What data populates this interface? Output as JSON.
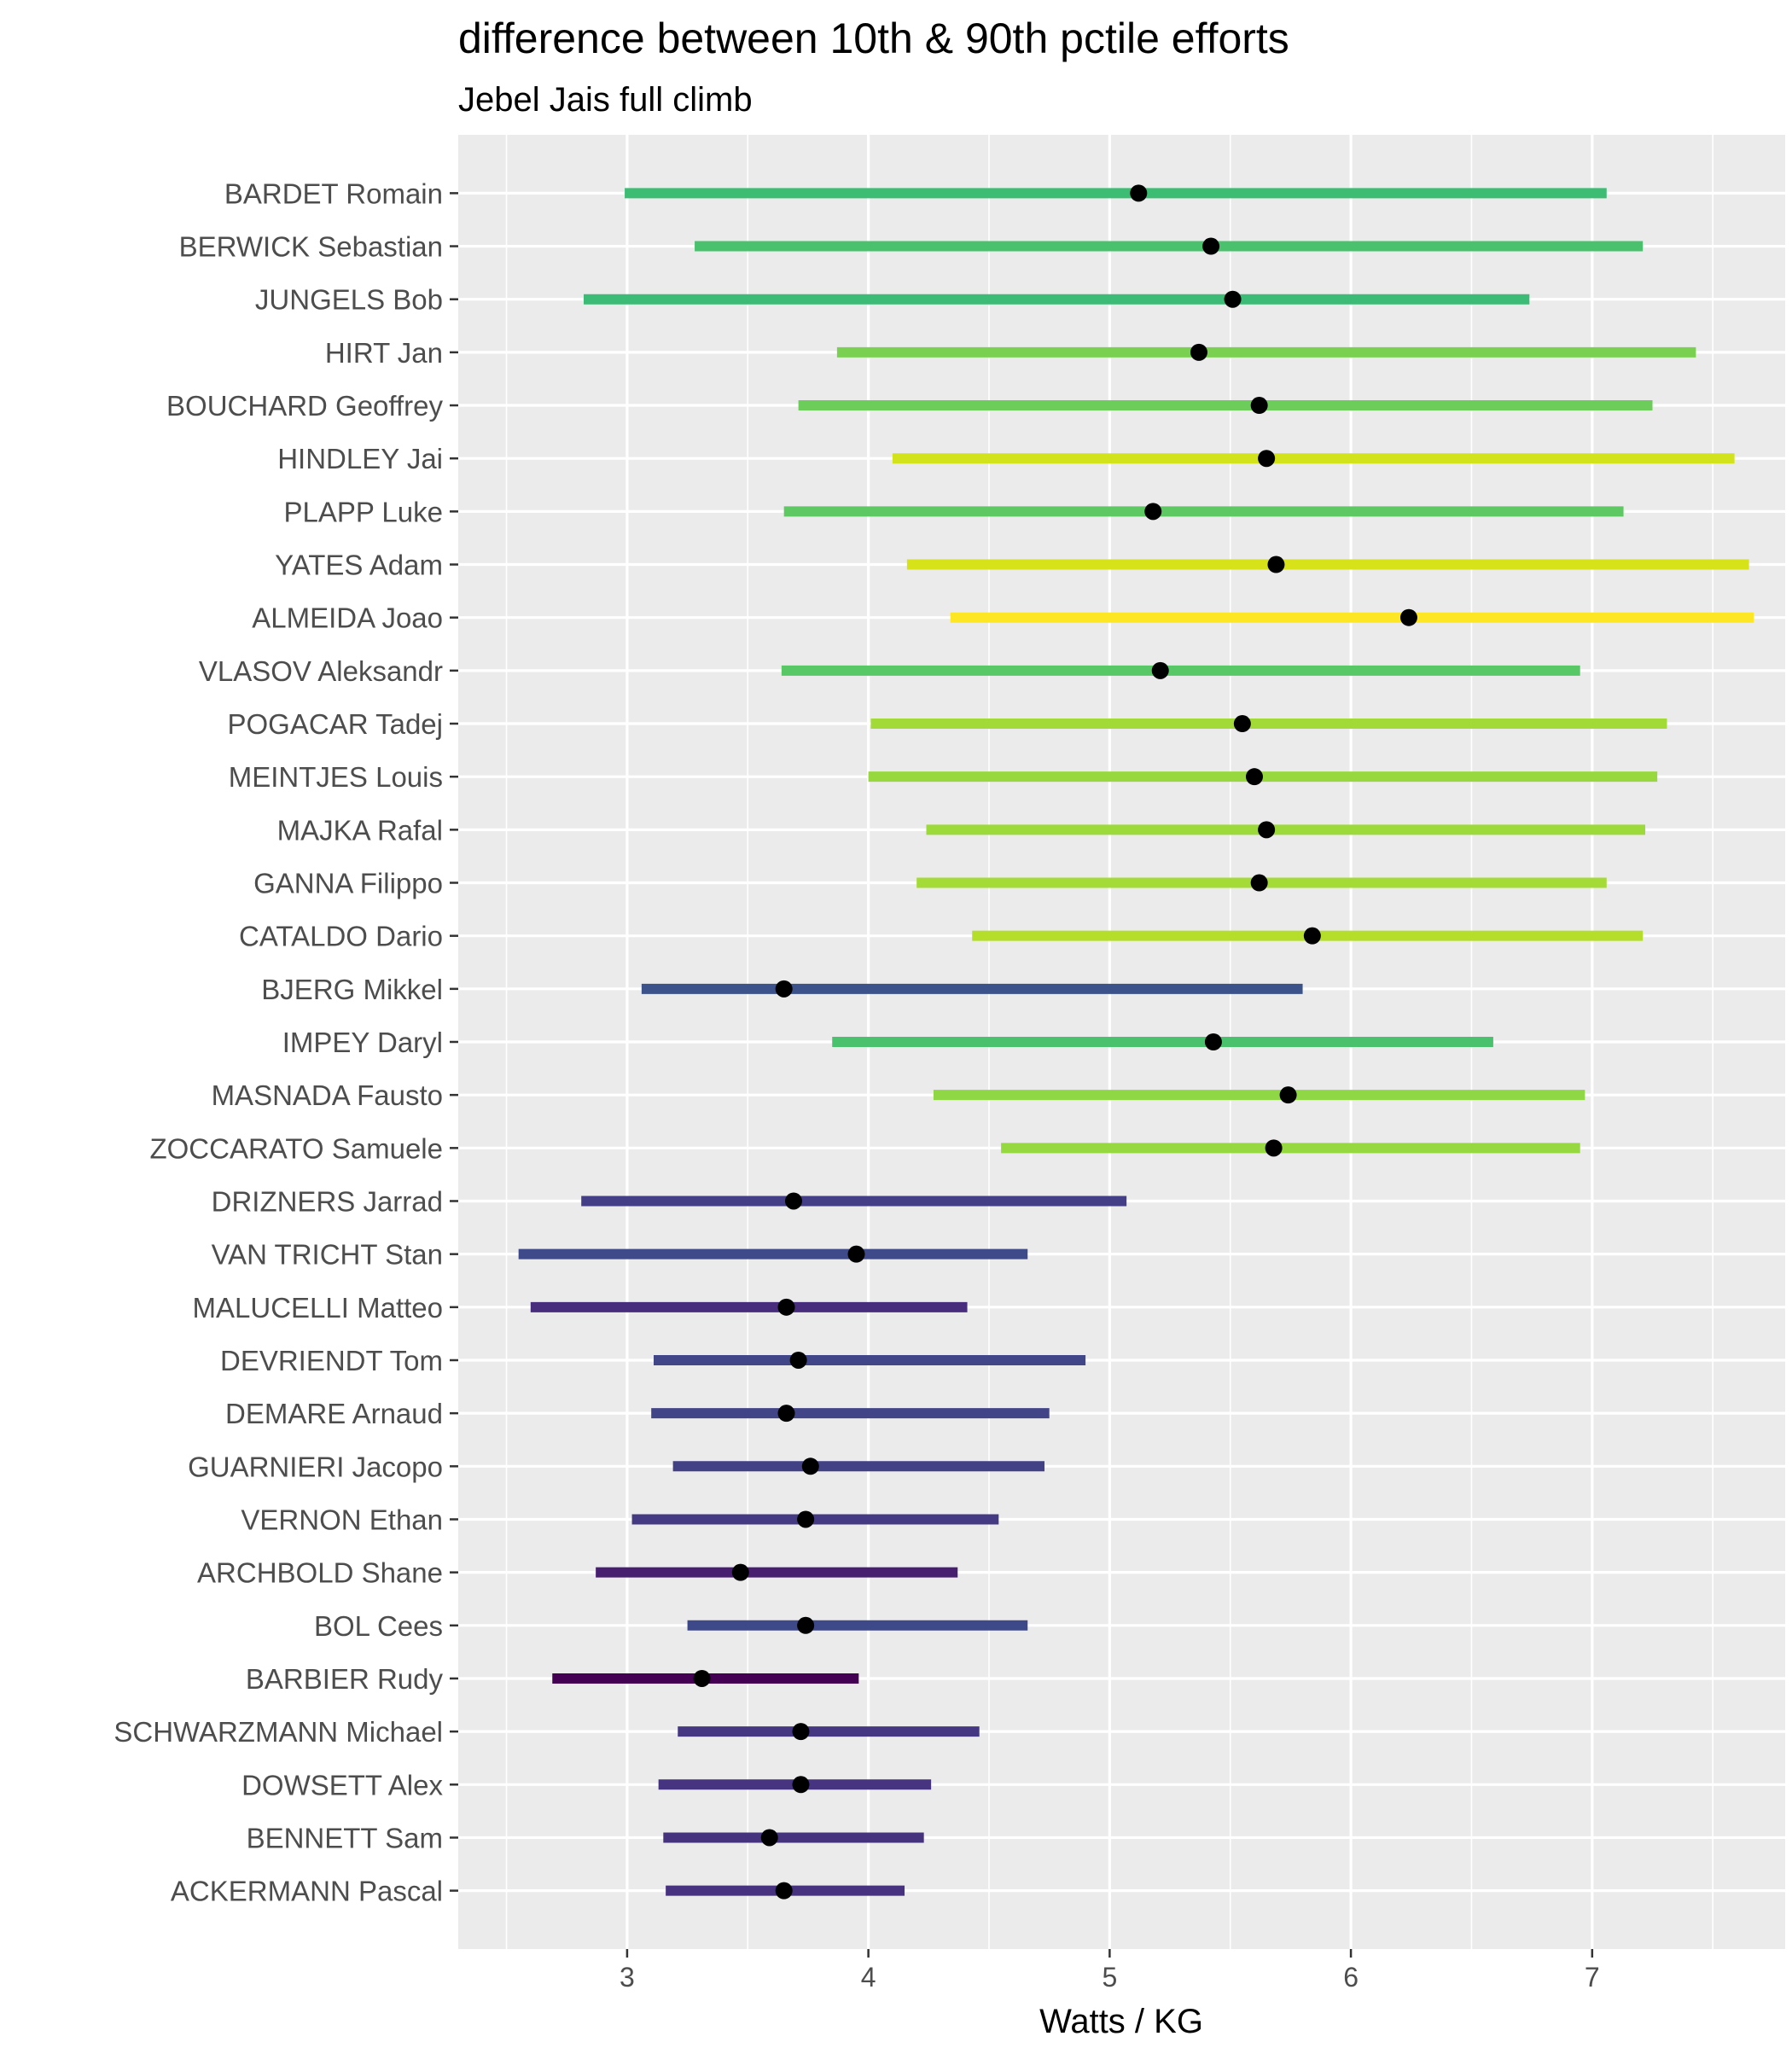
{
  "chart_data": {
    "type": "dumbbell",
    "title": "difference between 10th & 90th pctile efforts",
    "subtitle": "Jebel Jais full climb",
    "xlabel": "Watts / KG",
    "ylabel": "",
    "xlim": [
      2.3,
      7.8
    ],
    "xticks": [
      3,
      4,
      5,
      6,
      7
    ],
    "grid": true,
    "panel_background": "#ebebeb",
    "grid_color": "#ffffff",
    "point_color": "#000000",
    "color_scale": "viridis",
    "riders": [
      {
        "name": "BARDET Romain",
        "p10": 2.99,
        "p90": 7.06,
        "median": 5.12,
        "color": "#3dbc74"
      },
      {
        "name": "BERWICK Sebastian",
        "p10": 3.28,
        "p90": 7.21,
        "median": 5.42,
        "color": "#4ac16d"
      },
      {
        "name": "JUNGELS Bob",
        "p10": 2.82,
        "p90": 6.74,
        "median": 5.51,
        "color": "#3bbb75"
      },
      {
        "name": "HIRT Jan",
        "p10": 3.87,
        "p90": 7.43,
        "median": 5.37,
        "color": "#7ad151"
      },
      {
        "name": "BOUCHARD Geoffrey",
        "p10": 3.71,
        "p90": 7.25,
        "median": 5.62,
        "color": "#6ccd5a"
      },
      {
        "name": "HINDLEY Jai",
        "p10": 4.1,
        "p90": 7.59,
        "median": 5.65,
        "color": "#d2e21b"
      },
      {
        "name": "PLAPP Luke",
        "p10": 3.65,
        "p90": 7.13,
        "median": 5.18,
        "color": "#5ec962"
      },
      {
        "name": "YATES Adam",
        "p10": 4.16,
        "p90": 7.65,
        "median": 5.69,
        "color": "#d8e219"
      },
      {
        "name": "ALMEIDA Joao",
        "p10": 4.34,
        "p90": 7.67,
        "median": 6.24,
        "color": "#fde725"
      },
      {
        "name": "VLASOV Aleksandr",
        "p10": 3.64,
        "p90": 6.95,
        "median": 5.21,
        "color": "#58c765"
      },
      {
        "name": "POGACAR Tadej",
        "p10": 4.01,
        "p90": 7.31,
        "median": 5.55,
        "color": "#a2da37"
      },
      {
        "name": "MEINTJES Louis",
        "p10": 4.0,
        "p90": 7.27,
        "median": 5.6,
        "color": "#97d83f"
      },
      {
        "name": "MAJKA Rafal",
        "p10": 4.24,
        "p90": 7.22,
        "median": 5.65,
        "color": "#9cd93b"
      },
      {
        "name": "GANNA Filippo",
        "p10": 4.2,
        "p90": 7.06,
        "median": 5.62,
        "color": "#a5db36"
      },
      {
        "name": "CATALDO Dario",
        "p10": 4.43,
        "p90": 7.21,
        "median": 5.84,
        "color": "#b5de2b"
      },
      {
        "name": "BJERG Mikkel",
        "p10": 3.06,
        "p90": 5.8,
        "median": 3.65,
        "color": "#3b528b"
      },
      {
        "name": "IMPEY Daryl",
        "p10": 3.85,
        "p90": 6.59,
        "median": 5.43,
        "color": "#4ac16d"
      },
      {
        "name": "MASNADA Fausto",
        "p10": 4.27,
        "p90": 6.97,
        "median": 5.74,
        "color": "#8fd744"
      },
      {
        "name": "ZOCCARATO Samuele",
        "p10": 4.55,
        "p90": 6.95,
        "median": 5.68,
        "color": "#95d840"
      },
      {
        "name": "DRIZNERS Jarrad",
        "p10": 2.81,
        "p90": 5.07,
        "median": 3.69,
        "color": "#433e85"
      },
      {
        "name": "VAN TRICHT Stan",
        "p10": 2.55,
        "p90": 4.66,
        "median": 3.95,
        "color": "#3e4a89"
      },
      {
        "name": "MALUCELLI Matteo",
        "p10": 2.6,
        "p90": 4.41,
        "median": 3.66,
        "color": "#472d7b"
      },
      {
        "name": "DEVRIENDT Tom",
        "p10": 3.11,
        "p90": 4.9,
        "median": 3.71,
        "color": "#404688"
      },
      {
        "name": "DEMARE Arnaud",
        "p10": 3.1,
        "p90": 4.75,
        "median": 3.66,
        "color": "#414487"
      },
      {
        "name": "GUARNIERI Jacopo",
        "p10": 3.19,
        "p90": 4.73,
        "median": 3.76,
        "color": "#424186"
      },
      {
        "name": "VERNON Ethan",
        "p10": 3.02,
        "p90": 4.54,
        "median": 3.74,
        "color": "#443a83"
      },
      {
        "name": "ARCHBOLD Shane",
        "p10": 2.87,
        "p90": 4.37,
        "median": 3.47,
        "color": "#481f70"
      },
      {
        "name": "BOL Cees",
        "p10": 3.25,
        "p90": 4.66,
        "median": 3.74,
        "color": "#3e4989"
      },
      {
        "name": "BARBIER Rudy",
        "p10": 2.69,
        "p90": 3.96,
        "median": 3.31,
        "color": "#440154"
      },
      {
        "name": "SCHWARZMANN Michael",
        "p10": 3.21,
        "p90": 4.46,
        "median": 3.72,
        "color": "#453781"
      },
      {
        "name": "DOWSETT Alex",
        "p10": 3.13,
        "p90": 4.26,
        "median": 3.72,
        "color": "#463480"
      },
      {
        "name": "BENNETT Sam",
        "p10": 3.15,
        "p90": 4.23,
        "median": 3.59,
        "color": "#46337e"
      },
      {
        "name": "ACKERMANN Pascal",
        "p10": 3.16,
        "p90": 4.15,
        "median": 3.65,
        "color": "#46327e"
      }
    ]
  }
}
